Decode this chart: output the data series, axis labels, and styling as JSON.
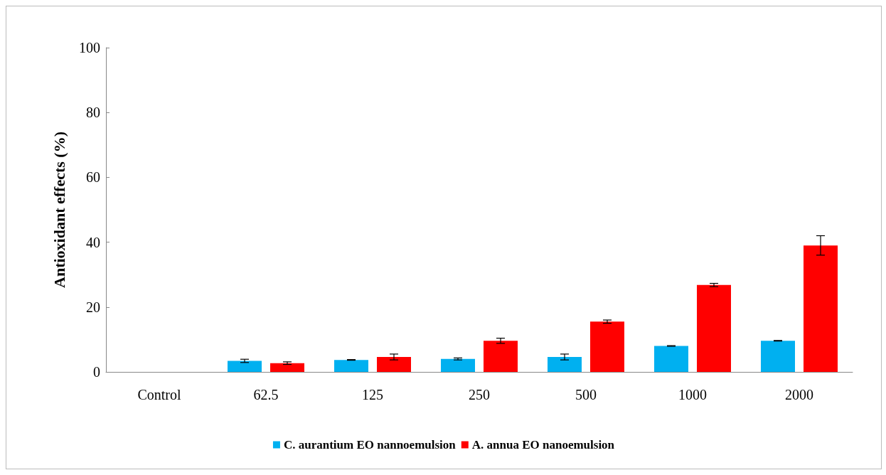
{
  "chart_data": {
    "type": "bar",
    "ylabel": "Antioxidant effects (%)",
    "categories": [
      "Control",
      "62.5",
      "125",
      "250",
      "500",
      "1000",
      "2000"
    ],
    "series": [
      {
        "name": "C. aurantium EO nannoemulsion",
        "color": "#00b0f0",
        "values": [
          null,
          3.4,
          3.7,
          4.0,
          4.6,
          8.0,
          9.6
        ],
        "errors": [
          null,
          0.5,
          0.1,
          0.3,
          0.9,
          0.1,
          0.1
        ]
      },
      {
        "name": "A. annua EO nanoemulsion",
        "color": "#ff0000",
        "values": [
          null,
          2.7,
          4.6,
          9.6,
          15.5,
          26.8,
          39
        ],
        "errors": [
          null,
          0.4,
          0.9,
          0.8,
          0.5,
          0.5,
          3
        ]
      }
    ],
    "ylim": [
      0,
      100
    ],
    "yticks": [
      0,
      20,
      40,
      60,
      80,
      100
    ],
    "grid": false,
    "legend": "bottom"
  }
}
